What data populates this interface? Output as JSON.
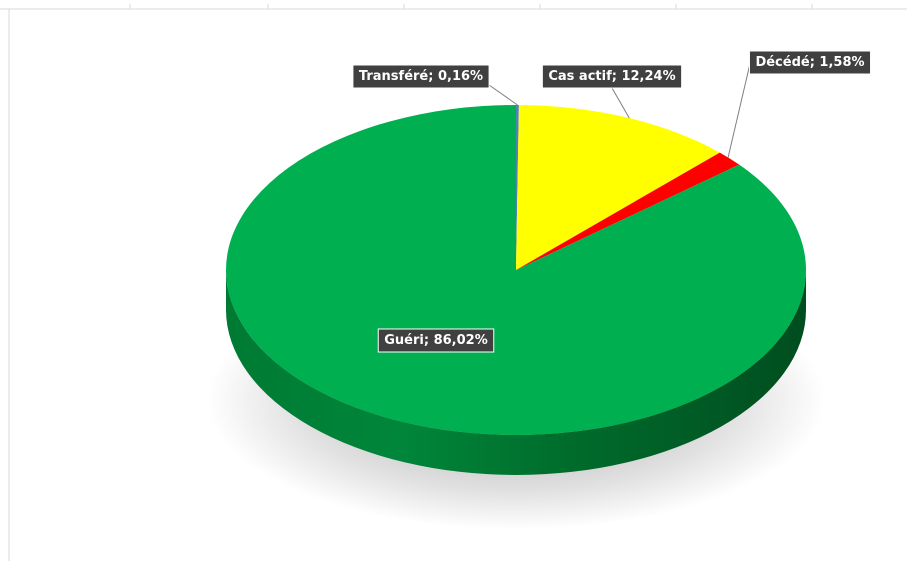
{
  "chart_data": {
    "type": "pie",
    "title": "",
    "slices": [
      {
        "label": "Transféré",
        "value": 0.16,
        "text": "Transféré; 0,16%",
        "color": "#4f81bd"
      },
      {
        "label": "Cas actif",
        "value": 12.24,
        "text": "Cas actif; 12,24%",
        "color": "#ffff00"
      },
      {
        "label": "Décédé",
        "value": 1.58,
        "text": "Décédé; 1,58%",
        "color": "#ff0000"
      },
      {
        "label": "Guéri",
        "value": 86.02,
        "text": "Guéri; 86,02%",
        "color": "#00b050"
      }
    ],
    "legend": "none",
    "style": "3d"
  }
}
